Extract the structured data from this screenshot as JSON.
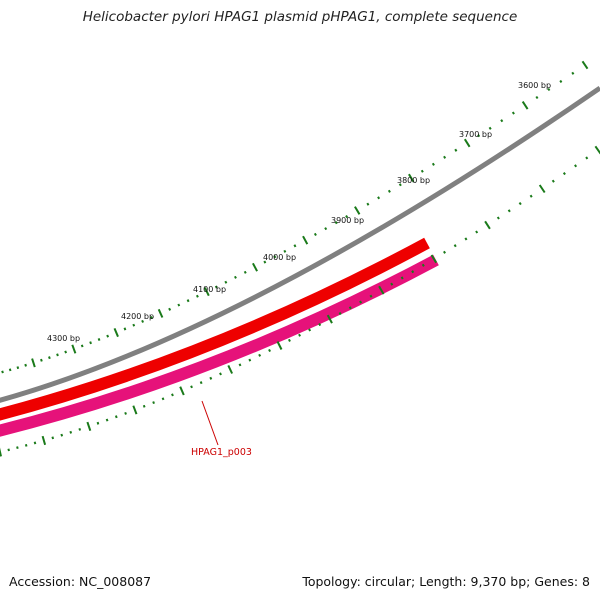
{
  "title": "Helicobacter pylori HPAG1 plasmid pHPAG1, complete sequence",
  "footer": {
    "accession": "Accession: NC_008087",
    "summary": "Topology: circular; Length: 9,370 bp; Genes: 8"
  },
  "map": {
    "backbone_color": "#808080",
    "tick_color": "#1a7a1a",
    "ruler_labels": [
      "3600 bp",
      "3700 bp",
      "3800 bp",
      "3900 bp",
      "4000 bp",
      "4100 bp",
      "4200 bp",
      "4300 bp"
    ]
  },
  "features": [
    {
      "name": "cds-feature",
      "color": "#ee0000",
      "label": ""
    },
    {
      "name": "gene-feature",
      "color": "#e6127a",
      "label": "HPAG1_p003"
    }
  ]
}
